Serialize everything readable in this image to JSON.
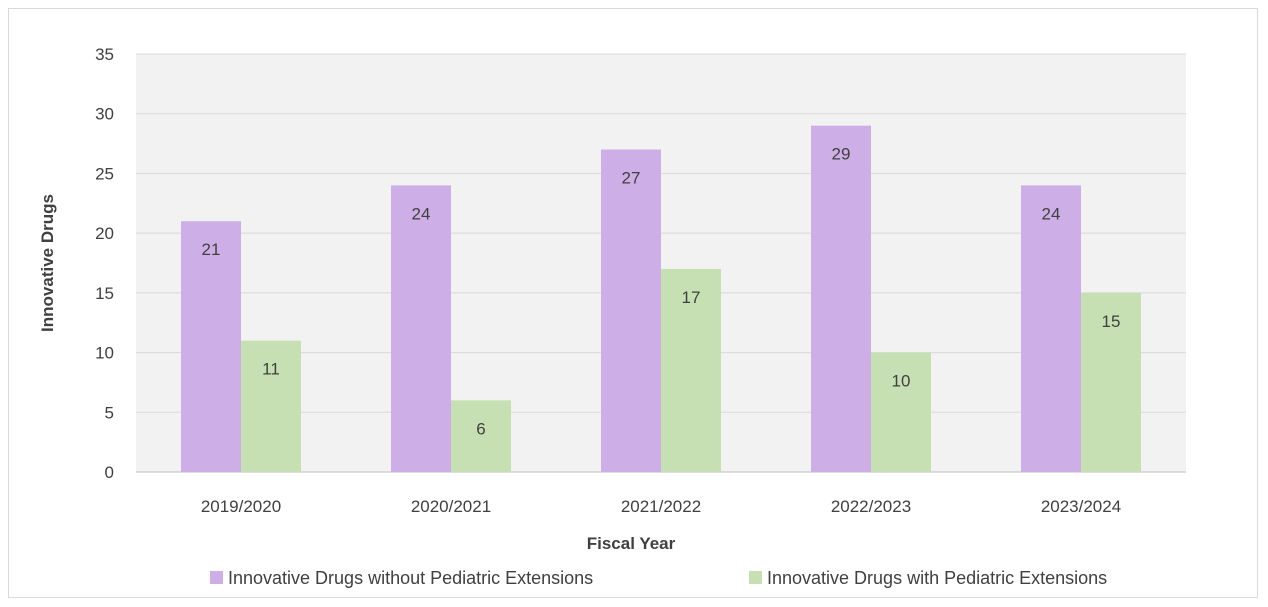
{
  "chart_data": {
    "type": "bar",
    "title": "",
    "xlabel": "Fiscal Year",
    "ylabel": "Innovative Drugs",
    "ylim": [
      0,
      35
    ],
    "yticks": [
      0,
      5,
      10,
      15,
      20,
      25,
      30,
      35
    ],
    "categories": [
      "2019/2020",
      "2020/2021",
      "2021/2022",
      "2022/2023",
      "2023/2024"
    ],
    "series": [
      {
        "name": "Innovative Drugs without Pediatric Extensions",
        "values": [
          21,
          24,
          27,
          29,
          24
        ],
        "color": "#cdaee6"
      },
      {
        "name": "Innovative Drugs with Pediatric Extensions",
        "values": [
          11,
          6,
          17,
          10,
          15
        ],
        "color": "#c6e0b4"
      }
    ],
    "grid": true,
    "plot_background": "#f2f2f2",
    "gridline_color": "#d9d9d9",
    "legend_position": "bottom",
    "data_labels": true
  }
}
